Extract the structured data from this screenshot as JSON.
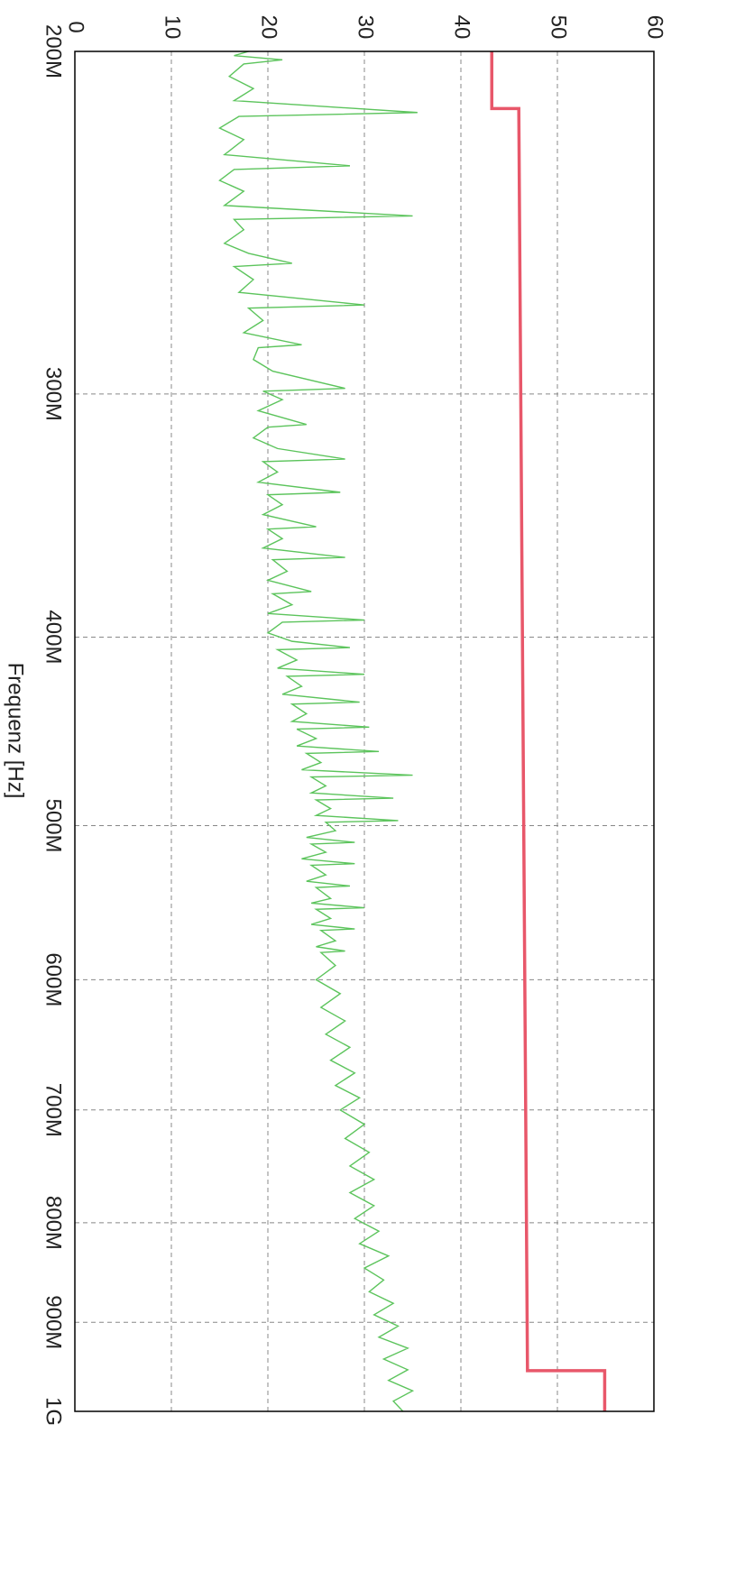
{
  "chart_data": {
    "type": "line",
    "x_label": "Frequenz [Hz]",
    "xscale": "log",
    "xlim": [
      200000000.0,
      1000000000.0
    ],
    "xticks": [
      {
        "value": 200000000.0,
        "label": "200M"
      },
      {
        "value": 300000000.0,
        "label": "300M"
      },
      {
        "value": 400000000.0,
        "label": "400M"
      },
      {
        "value": 500000000.0,
        "label": "500M"
      },
      {
        "value": 600000000.0,
        "label": "600M"
      },
      {
        "value": 700000000.0,
        "label": "700M"
      },
      {
        "value": 800000000.0,
        "label": "800M"
      },
      {
        "value": 900000000.0,
        "label": "900M"
      },
      {
        "value": 1000000000.0,
        "label": "1G"
      }
    ],
    "ylim": [
      0,
      60
    ],
    "yticks": [
      0,
      10,
      20,
      30,
      40,
      50,
      60
    ],
    "grid": true,
    "series": [
      {
        "color": "#5cc45c",
        "x": [
          200000000.0,
          201000000.0,
          202000000.0,
          203000000.0,
          206000000.0,
          209000000.0,
          212000000.0,
          215000000.0,
          216000000.0,
          219000000.0,
          222000000.0,
          226000000.0,
          229000000.0,
          230000000.0,
          233000000.0,
          236000000.0,
          240000000.0,
          243000000.0,
          244000000.0,
          247000000.0,
          251000000.0,
          254000000.0,
          257000000.0,
          258000000.0,
          262000000.0,
          266000000.0,
          270000000.0,
          271000000.0,
          275000000.0,
          279000000.0,
          283000000.0,
          284000000.0,
          288000000.0,
          292000000.0,
          298000000.0,
          299000000.0,
          302000000.0,
          306000000.0,
          311000000.0,
          312000000.0,
          316000000.0,
          320000000.0,
          324000000.0,
          325000000.0,
          329000000.0,
          333000000.0,
          337000000.0,
          338000000.0,
          342000000.0,
          346000000.0,
          351000000.0,
          352000000.0,
          356000000.0,
          360000000.0,
          364000000.0,
          365000000.0,
          370000000.0,
          374000000.0,
          379000000.0,
          380000000.0,
          385000000.0,
          389000000.0,
          392000000.0,
          393000000.0,
          398000000.0,
          402000000.0,
          405000000.0,
          406000000.0,
          411000000.0,
          415000000.0,
          418000000.0,
          419000000.0,
          424000000.0,
          428000000.0,
          432000000.0,
          433000000.0,
          438000000.0,
          442000000.0,
          445000000.0,
          446000000.0,
          451000000.0,
          455000000.0,
          458000000.0,
          459000000.0,
          464000000.0,
          468000000.0,
          471000000.0,
          472000000.0,
          477000000.0,
          481000000.0,
          484000000.0,
          485000000.0,
          490000000.0,
          494000000.0,
          497000000.0,
          498000000.0,
          503000000.0,
          507000000.0,
          510000000.0,
          511000000.0,
          516000000.0,
          520000000.0,
          523000000.0,
          524000000.0,
          530000000.0,
          534000000.0,
          537000000.0,
          538000000.0,
          545000000.0,
          548000000.0,
          551000000.0,
          552000000.0,
          558000000.0,
          562000000.0,
          565000000.0,
          566000000.0,
          573000000.0,
          577000000.0,
          580000000.0,
          581000000.0,
          590000000.0,
          600000000.0,
          610000000.0,
          620000000.0,
          630000000.0,
          640000000.0,
          650000000.0,
          660000000.0,
          670000000.0,
          680000000.0,
          690000000.0,
          700000000.0,
          712000000.0,
          724000000.0,
          736000000.0,
          748000000.0,
          760000000.0,
          772000000.0,
          784000000.0,
          796000000.0,
          808000000.0,
          820000000.0,
          832000000.0,
          844000000.0,
          856000000.0,
          868000000.0,
          880000000.0,
          892000000.0,
          904000000.0,
          916000000.0,
          928000000.0,
          940000000.0,
          952000000.0,
          964000000.0,
          976000000.0,
          988000000.0,
          1000000000.0
        ],
        "values": [
          18,
          16.5,
          21.5,
          17.5,
          16,
          18.5,
          16.5,
          35.5,
          17,
          15,
          17.5,
          15.5,
          28.5,
          16.5,
          15,
          17.5,
          15.5,
          35,
          16.5,
          17.5,
          15.5,
          18,
          22.5,
          16.5,
          18.5,
          17,
          30,
          18,
          19.5,
          17.5,
          23.5,
          19,
          18.5,
          20.5,
          28,
          19.5,
          21.5,
          19,
          24,
          20,
          18.5,
          21,
          28,
          19.5,
          21,
          19,
          27.5,
          20,
          21.5,
          19.5,
          25,
          20,
          21.5,
          19.5,
          28,
          20.5,
          22,
          20,
          24.5,
          20.5,
          22.5,
          20,
          30,
          21.5,
          20,
          22.5,
          28.5,
          21,
          23,
          21,
          30,
          22,
          23.5,
          21.5,
          29.5,
          22.5,
          24,
          22.5,
          30.5,
          23,
          25,
          23,
          31.5,
          24,
          25.5,
          23.5,
          35,
          24.5,
          26,
          24.5,
          33,
          25,
          26.5,
          25,
          33.5,
          26,
          27,
          24,
          29,
          24.5,
          26,
          23.5,
          29,
          24.5,
          26,
          24,
          28.5,
          25,
          26.5,
          24.5,
          30,
          25,
          26.5,
          24.5,
          29,
          25.5,
          27,
          25,
          28,
          25.5,
          27,
          25,
          27.5,
          25.5,
          28,
          26,
          28.5,
          26.5,
          29,
          27,
          29.5,
          27.5,
          30,
          28,
          30.5,
          28.5,
          31,
          28.5,
          31,
          29,
          31.5,
          29.5,
          32.5,
          30,
          32,
          30.5,
          33,
          31,
          33.5,
          31.5,
          34.5,
          32,
          34.5,
          32.5,
          35,
          33,
          34
        ]
      },
      {
        "color": "#e8576a",
        "x": [
          200000000.0,
          214000000.0,
          214000000.0,
          953000000.0,
          953000000.0,
          1000000000.0
        ],
        "values": [
          43.2,
          43.2,
          46,
          46.9,
          54.9,
          54.9
        ]
      }
    ]
  }
}
